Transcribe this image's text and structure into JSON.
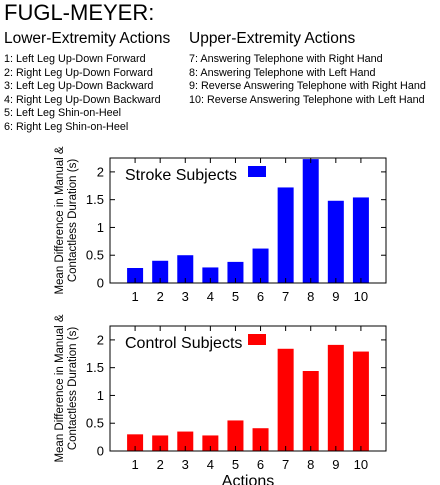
{
  "header": {
    "title": "FUGL-MEYER:",
    "lower_title": "Lower-Extremity Actions",
    "upper_title": "Upper-Extremity Actions",
    "lower_actions": [
      "1: Left Leg Up-Down Forward",
      "2: Right Leg Up-Down Forward",
      "3: Left Leg Up-Down Backward",
      "4: Right Leg Up-Down Backward",
      "5: Left Leg Shin-on-Heel",
      "6: Right Leg Shin-on-Heel"
    ],
    "upper_actions": [
      "7: Answering Telephone with Right Hand",
      "8: Answering Telephone with Left Hand",
      "9: Reverse Answering Telephone with Right Hand",
      "10: Reverse Answering Telephone with Left Hand"
    ]
  },
  "chart_data": [
    {
      "type": "bar",
      "categories": [
        "1",
        "2",
        "3",
        "4",
        "5",
        "6",
        "7",
        "8",
        "9",
        "10"
      ],
      "series": [
        {
          "name": "Stroke Subjects",
          "color": "#0000ff",
          "values": [
            0.27,
            0.4,
            0.5,
            0.28,
            0.38,
            0.62,
            1.72,
            2.23,
            1.48,
            1.54
          ]
        }
      ],
      "ylabel_lines": [
        "Mean Difference in Manual &",
        "Contactless Duration (s)"
      ],
      "xlabel": "",
      "yticks": [
        "0",
        "0.5",
        "1",
        "1.5",
        "2"
      ],
      "ylim": [
        0,
        2.25
      ],
      "legend": "top-left"
    },
    {
      "type": "bar",
      "categories": [
        "1",
        "2",
        "3",
        "4",
        "5",
        "6",
        "7",
        "8",
        "9",
        "10"
      ],
      "series": [
        {
          "name": "Control Subjects",
          "color": "#ff0000",
          "values": [
            0.3,
            0.28,
            0.35,
            0.28,
            0.55,
            0.41,
            1.84,
            1.44,
            1.91,
            1.79
          ]
        }
      ],
      "ylabel_lines": [
        "Mean Difference in Manual &",
        "Contactless Duration (s)"
      ],
      "xlabel": "Actions",
      "yticks": [
        "0",
        "0.5",
        "1",
        "1.5",
        "2"
      ],
      "ylim": [
        0,
        2.25
      ],
      "legend": "top-left"
    }
  ]
}
